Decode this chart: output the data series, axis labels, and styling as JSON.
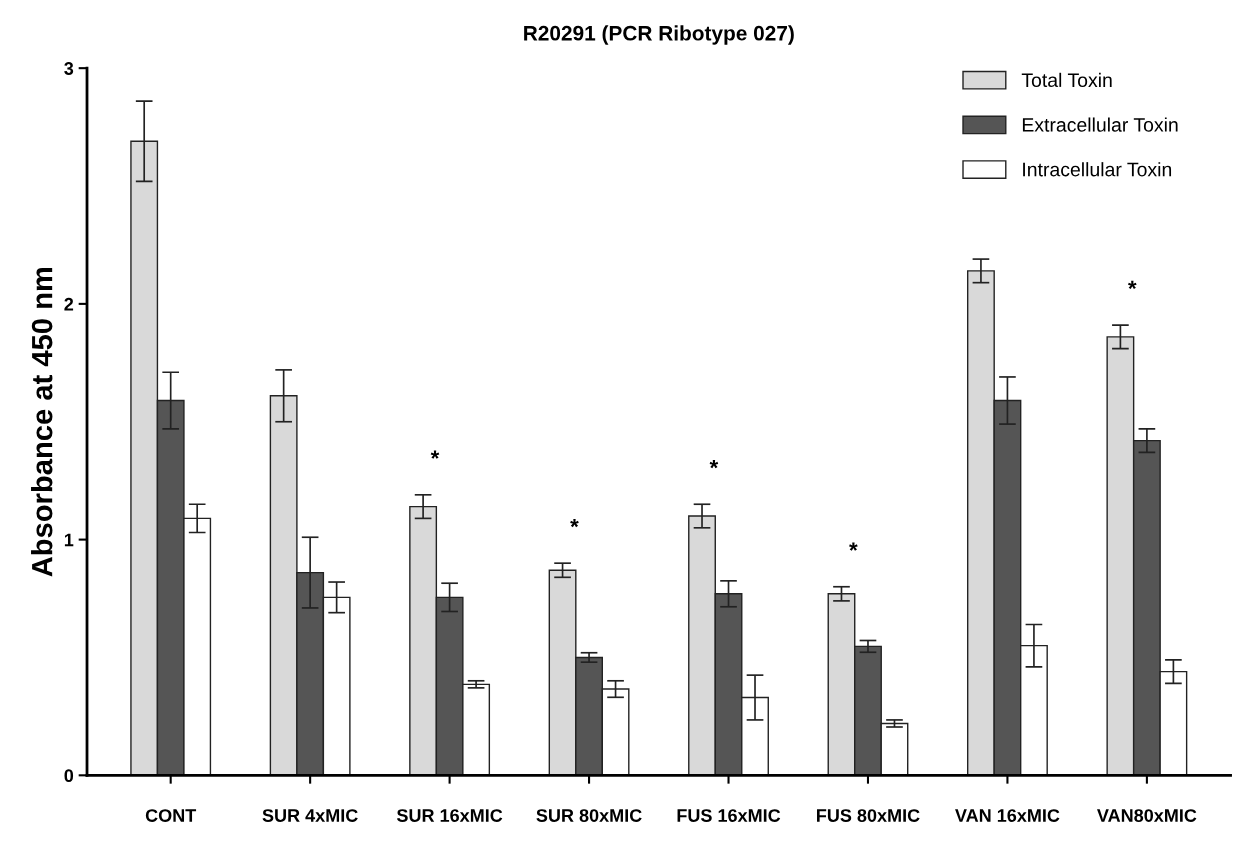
{
  "chart_data": {
    "type": "bar",
    "title": "R20291 (PCR Ribotype 027)",
    "ylabel": "Absorbance at 450 nm",
    "categories": [
      "CONT",
      "SUR 4xMIC",
      "SUR 16xMIC",
      "SUR 80xMIC",
      "FUS 16xMIC",
      "FUS 80xMIC",
      "VAN 16xMIC",
      "VAN80xMIC"
    ],
    "series": [
      {
        "name": "Total Toxin",
        "color": "#d9d9d9",
        "values": [
          2.69,
          1.61,
          1.14,
          0.87,
          1.1,
          0.77,
          2.14,
          1.86
        ],
        "errors": [
          0.17,
          0.11,
          0.05,
          0.03,
          0.05,
          0.03,
          0.05,
          0.05
        ]
      },
      {
        "name": "Extracellular Toxin",
        "color": "#555555",
        "values": [
          1.59,
          0.86,
          0.755,
          0.5,
          0.77,
          0.547,
          1.59,
          1.42
        ],
        "errors": [
          0.12,
          0.15,
          0.06,
          0.02,
          0.055,
          0.025,
          0.1,
          0.05
        ]
      },
      {
        "name": "Intracellular Toxin",
        "color": "#ffffff",
        "values": [
          1.09,
          0.755,
          0.386,
          0.366,
          0.33,
          0.22,
          0.55,
          0.44
        ],
        "errors": [
          0.06,
          0.065,
          0.015,
          0.035,
          0.095,
          0.015,
          0.09,
          0.05
        ]
      }
    ],
    "annotations": [
      "*",
      "*",
      "*",
      "*",
      "*"
    ],
    "ylim": [
      0,
      3
    ],
    "yticks": [
      0,
      1,
      2,
      3
    ],
    "grid": false,
    "legend": "top right"
  }
}
